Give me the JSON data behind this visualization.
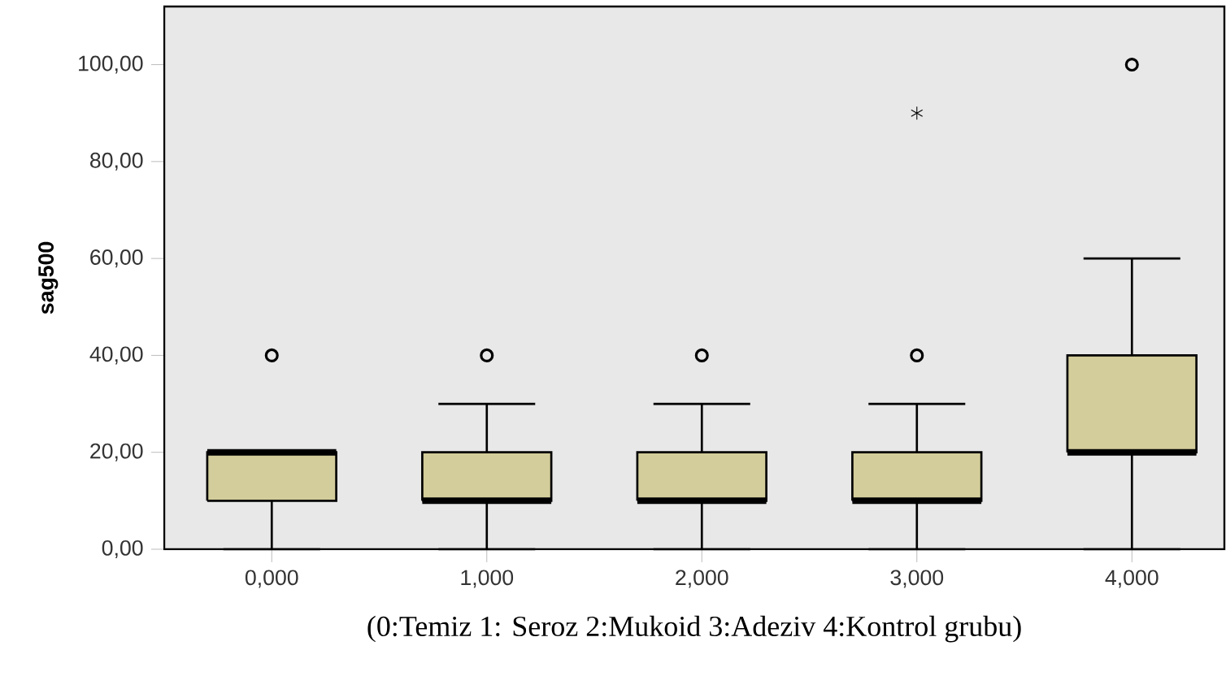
{
  "chart_data": {
    "type": "box",
    "xlabel": "(0:Temiz 1: Seroz 2:Mukoid 3:Adeziv 4:Kontrol grubu)",
    "ylabel": "sag500",
    "categories": [
      "0,000",
      "1,000",
      "2,000",
      "3,000",
      "4,000"
    ],
    "ylim": [
      0,
      112
    ],
    "yticks": [
      {
        "value": 0,
        "label": "0,00"
      },
      {
        "value": 20,
        "label": "20,00"
      },
      {
        "value": 40,
        "label": "40,00"
      },
      {
        "value": 60,
        "label": "60,00"
      },
      {
        "value": 80,
        "label": "80,00"
      },
      {
        "value": 100,
        "label": "100,00"
      }
    ],
    "color": "#d3cd9b",
    "boxes": [
      {
        "low": 0,
        "q1": 10,
        "median": 20,
        "q3": 20,
        "high": 20,
        "outliers": [
          40
        ]
      },
      {
        "low": 0,
        "q1": 10,
        "median": 10,
        "q3": 20,
        "high": 30,
        "outliers": [
          40
        ]
      },
      {
        "low": 0,
        "q1": 10,
        "median": 10,
        "q3": 20,
        "high": 30,
        "outliers": [
          40
        ]
      },
      {
        "low": 0,
        "q1": 10,
        "median": 10,
        "q3": 20,
        "high": 30,
        "outliers": [
          40,
          90
        ]
      },
      {
        "low": 0,
        "q1": 20,
        "median": 20,
        "q3": 40,
        "high": 60,
        "outliers": [
          100
        ]
      }
    ]
  }
}
